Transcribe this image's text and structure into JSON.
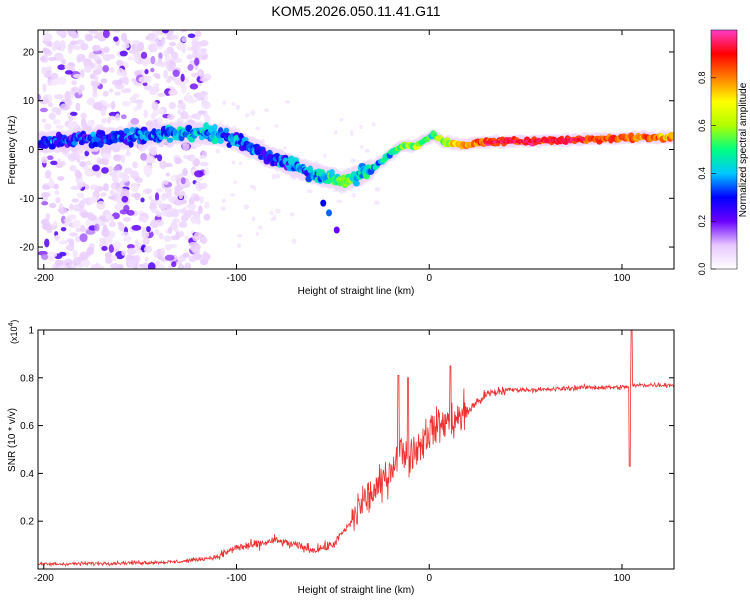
{
  "figure_title": "KOM5.2026.050.11.41.G11",
  "chart_data": [
    {
      "type": "heatmap",
      "title": "KOM5.2026.050.11.41.G11",
      "xlabel": "Height of straight line (km)",
      "ylabel": "Frequency (Hz)",
      "xlim": [
        -203,
        127
      ],
      "ylim": [
        -24.5,
        24.5
      ],
      "xticks": [
        -200,
        -100,
        0,
        100
      ],
      "yticks": [
        -20,
        -10,
        0,
        10,
        20
      ],
      "colorbar": {
        "label": "Normalized spectral amplitude",
        "range": [
          0.0,
          1.0
        ],
        "ticks": [
          0.0,
          0.2,
          0.4,
          0.6,
          0.8
        ],
        "colormap": [
          "#ffffff",
          "#e8c8ff",
          "#6a00ff",
          "#0000ff",
          "#00c8ff",
          "#00ff80",
          "#b0ff00",
          "#ffff00",
          "#ff8000",
          "#ff0000",
          "#ff3cc8"
        ]
      },
      "ridge": {
        "x": [
          -200,
          -180,
          -160,
          -140,
          -120,
          -110,
          -100,
          -90,
          -80,
          -70,
          -60,
          -50,
          -44,
          -38,
          -30,
          -20,
          -14,
          -8,
          -2,
          2,
          8,
          16,
          30,
          60,
          90,
          110,
          127
        ],
        "y": [
          1.5,
          2.0,
          2.5,
          3.0,
          3.5,
          3.0,
          2.0,
          0.0,
          -2.0,
          -3.5,
          -5.0,
          -6.0,
          -6.5,
          -5.5,
          -4.0,
          -1.0,
          1.0,
          0.5,
          2.0,
          3.0,
          1.5,
          1.0,
          1.5,
          1.8,
          2.2,
          2.5,
          2.5
        ],
        "amplitude": [
          0.3,
          0.3,
          0.3,
          0.35,
          0.4,
          0.4,
          0.35,
          0.3,
          0.3,
          0.35,
          0.4,
          0.45,
          0.6,
          0.45,
          0.4,
          0.45,
          0.55,
          0.6,
          0.55,
          0.5,
          0.6,
          0.75,
          0.85,
          0.92,
          0.85,
          0.8,
          0.8
        ]
      },
      "noise_region_x": [
        -200,
        -115
      ]
    },
    {
      "type": "line",
      "xlabel": "Height of straight line (km)",
      "ylabel": "SNR (10 * v/v)",
      "yscale_label": "(x10",
      "yscale_exponent": "4",
      "xlim": [
        -203,
        127
      ],
      "ylim": [
        0,
        1.0
      ],
      "xticks": [
        -200,
        -100,
        0,
        100
      ],
      "yticks": [
        0.2,
        0.4,
        0.6,
        0.8,
        1.0
      ],
      "series": [
        {
          "name": "SNR",
          "color": "#ee3030",
          "x": [
            -200,
            -160,
            -130,
            -110,
            -100,
            -90,
            -80,
            -70,
            -60,
            -50,
            -40,
            -35,
            -25,
            -20,
            -15,
            -10,
            -5,
            0,
            5,
            10,
            15,
            20,
            25,
            30,
            40,
            60,
            80,
            100,
            110,
            127
          ],
          "y": [
            0.02,
            0.025,
            0.03,
            0.05,
            0.09,
            0.1,
            0.12,
            0.1,
            0.08,
            0.1,
            0.2,
            0.28,
            0.35,
            0.42,
            0.5,
            0.48,
            0.52,
            0.58,
            0.6,
            0.62,
            0.63,
            0.66,
            0.7,
            0.73,
            0.75,
            0.75,
            0.76,
            0.76,
            0.77,
            0.77
          ],
          "spikes": [
            {
              "x": -16,
              "y": 0.81
            },
            {
              "x": -11,
              "y": 0.8
            },
            {
              "x": 11,
              "y": 0.85
            },
            {
              "x": 105,
              "y": 1.0
            },
            {
              "x": 104,
              "y": 0.43
            }
          ]
        }
      ]
    }
  ]
}
